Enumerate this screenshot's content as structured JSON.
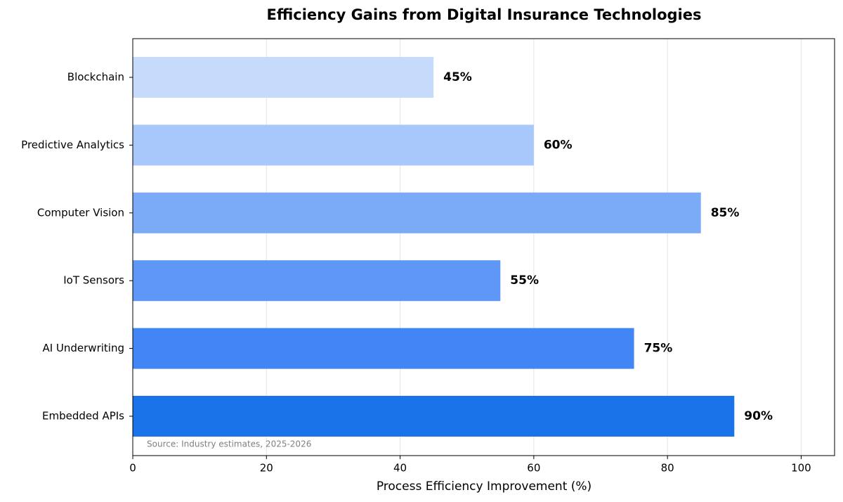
{
  "chart_data": {
    "type": "barh",
    "title": "Efficiency Gains from Digital Insurance Technologies",
    "xlabel": "Process Efficiency Improvement (%)",
    "categories": [
      "Blockchain",
      "Predictive Analytics",
      "Computer Vision",
      "IoT Sensors",
      "AI Underwriting",
      "Embedded APIs"
    ],
    "values": [
      45,
      60,
      85,
      55,
      75,
      90
    ],
    "value_labels": [
      "45%",
      "60%",
      "85%",
      "55%",
      "75%",
      "90%"
    ],
    "colors": [
      "#c6dafc",
      "#a8c7fa",
      "#7baaf7",
      "#5e97f6",
      "#4285f4",
      "#1a73e8"
    ],
    "xlim": [
      0,
      105
    ],
    "xticks": [
      0,
      20,
      40,
      60,
      80,
      100
    ],
    "grid": true,
    "annotation": "Source: Industry estimates, 2025-2026"
  }
}
